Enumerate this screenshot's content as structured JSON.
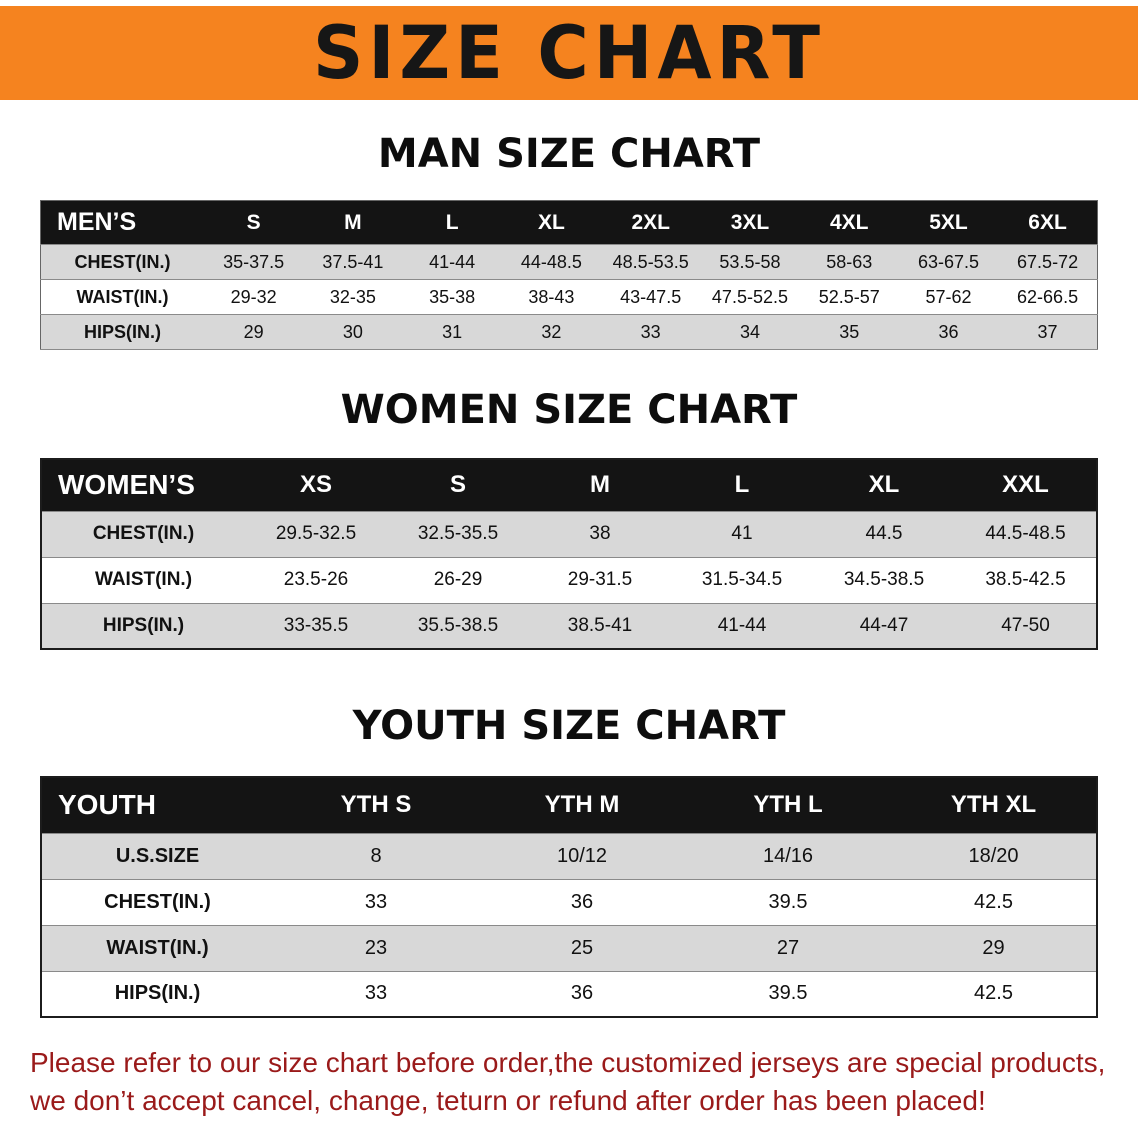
{
  "banner": {
    "title": "SIZE CHART",
    "bg_color": "#f5831f",
    "text_color": "#161616"
  },
  "sections": [
    {
      "id": "men",
      "heading": "MAN SIZE CHART",
      "label_header": "MEN’S",
      "columns": [
        "S",
        "M",
        "L",
        "XL",
        "2XL",
        "3XL",
        "4XL",
        "5XL",
        "6XL"
      ],
      "rows": [
        {
          "label": "CHEST(IN.)",
          "values": [
            "35-37.5",
            "37.5-41",
            "41-44",
            "44-48.5",
            "48.5-53.5",
            "53.5-58",
            "58-63",
            "63-67.5",
            "67.5-72"
          ]
        },
        {
          "label": "WAIST(IN.)",
          "values": [
            "29-32",
            "32-35",
            "35-38",
            "38-43",
            "43-47.5",
            "47.5-52.5",
            "52.5-57",
            "57-62",
            "62-66.5"
          ]
        },
        {
          "label": "HIPS(IN.)",
          "values": [
            "29",
            "30",
            "31",
            "32",
            "33",
            "34",
            "35",
            "36",
            "37"
          ]
        }
      ]
    },
    {
      "id": "women",
      "heading": "WOMEN SIZE CHART",
      "label_header": "WOMEN’S",
      "columns": [
        "XS",
        "S",
        "M",
        "L",
        "XL",
        "XXL"
      ],
      "rows": [
        {
          "label": "CHEST(IN.)",
          "values": [
            "29.5-32.5",
            "32.5-35.5",
            "38",
            "41",
            "44.5",
            "44.5-48.5"
          ]
        },
        {
          "label": "WAIST(IN.)",
          "values": [
            "23.5-26",
            "26-29",
            "29-31.5",
            "31.5-34.5",
            "34.5-38.5",
            "38.5-42.5"
          ]
        },
        {
          "label": "HIPS(IN.)",
          "values": [
            "33-35.5",
            "35.5-38.5",
            "38.5-41",
            "41-44",
            "44-47",
            "47-50"
          ]
        }
      ]
    },
    {
      "id": "youth",
      "heading": "YOUTH SIZE CHART",
      "label_header": "YOUTH",
      "columns": [
        "YTH S",
        "YTH M",
        "YTH L",
        "YTH XL"
      ],
      "rows": [
        {
          "label": "U.S.SIZE",
          "values": [
            "8",
            "10/12",
            "14/16",
            "18/20"
          ]
        },
        {
          "label": "CHEST(IN.)",
          "values": [
            "33",
            "36",
            "39.5",
            "42.5"
          ]
        },
        {
          "label": "WAIST(IN.)",
          "values": [
            "23",
            "25",
            "27",
            "29"
          ]
        },
        {
          "label": "HIPS(IN.)",
          "values": [
            "33",
            "36",
            "39.5",
            "42.5"
          ]
        }
      ]
    }
  ],
  "disclaimer": {
    "color": "#9a1a1a",
    "lines": [
      "Please refer to our size chart before order,the customized jerseys are special products,",
      "we don’t accept cancel, change, teturn or refund after order has been placed!"
    ]
  }
}
